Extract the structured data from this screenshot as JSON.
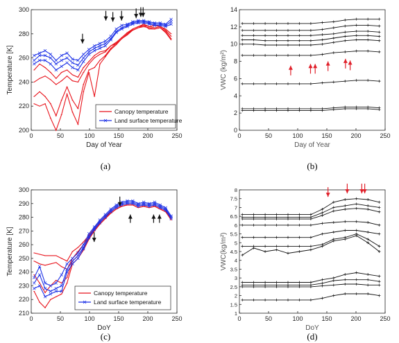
{
  "colors": {
    "red": "#e8121a",
    "blue": "#1a2fe6",
    "black": "#111111",
    "arrow_red": "#e0202a"
  },
  "chart_data": [
    {
      "id": "a",
      "type": "line",
      "caption": "(a)",
      "xlabel": "Day of Year",
      "ylabel": "Temperature [K]",
      "xlim": [
        0,
        250
      ],
      "ylim": [
        200,
        300
      ],
      "xticks": [
        "0",
        "50",
        "100",
        "150",
        "200",
        "250"
      ],
      "yticks": [
        "200",
        "220",
        "240",
        "260",
        "280",
        "300"
      ],
      "legend": {
        "placement": "bottom-right",
        "entries": [
          "Canopy temperature",
          "Land surface temperature"
        ]
      },
      "arrows_color": "black",
      "arrows": [
        {
          "x": 88,
          "y": 272
        },
        {
          "x": 128,
          "y": 291
        },
        {
          "x": 140,
          "y": 290
        },
        {
          "x": 155,
          "y": 291
        },
        {
          "x": 180,
          "y": 293
        },
        {
          "x": 188,
          "y": 294
        },
        {
          "x": 192,
          "y": 294
        }
      ],
      "series": [
        {
          "color": "red",
          "values": [
            250,
            255,
            252,
            248,
            243,
            248,
            250,
            246,
            244,
            252,
            257,
            262,
            265,
            266,
            270,
            272,
            276,
            280,
            284,
            286,
            288,
            286,
            287,
            286,
            284,
            280
          ]
        },
        {
          "color": "red",
          "values": [
            240,
            243,
            245,
            242,
            238,
            241,
            245,
            241,
            240,
            248,
            255,
            260,
            263,
            265,
            270,
            273,
            277,
            281,
            284,
            286,
            287,
            286,
            285,
            286,
            283,
            278
          ]
        },
        {
          "color": "red",
          "values": [
            228,
            232,
            228,
            222,
            212,
            225,
            236,
            225,
            218,
            238,
            250,
            252,
            258,
            262,
            268,
            272,
            276,
            280,
            283,
            285,
            286,
            285,
            284,
            285,
            282,
            276
          ]
        },
        {
          "color": "red",
          "values": [
            222,
            220,
            222,
            210,
            200,
            213,
            230,
            215,
            205,
            232,
            248,
            228,
            255,
            261,
            267,
            271,
            276,
            279,
            283,
            285,
            287,
            284,
            284,
            285,
            281,
            275
          ]
        },
        {
          "color": "blue",
          "values": [
            258,
            262,
            262,
            260,
            255,
            258,
            260,
            256,
            254,
            260,
            265,
            268,
            270,
            272,
            276,
            282,
            285,
            287,
            289,
            290,
            290,
            289,
            288,
            288,
            287,
            290
          ]
        },
        {
          "color": "blue",
          "values": [
            262,
            264,
            266,
            263,
            258,
            262,
            264,
            259,
            258,
            263,
            267,
            270,
            272,
            274,
            278,
            284,
            287,
            288,
            290,
            291,
            291,
            290,
            289,
            289,
            288,
            292
          ]
        },
        {
          "color": "blue",
          "values": [
            255,
            258,
            258,
            255,
            250,
            253,
            256,
            252,
            250,
            257,
            263,
            266,
            268,
            270,
            275,
            281,
            284,
            286,
            288,
            289,
            289,
            288,
            287,
            287,
            286,
            288
          ]
        }
      ]
    },
    {
      "id": "b",
      "type": "line",
      "caption": "(b)",
      "xlabel": "Day of Year",
      "ylabel": "VWC (kg/m²)",
      "xlim": [
        0,
        250
      ],
      "ylim": [
        0,
        14
      ],
      "xticks": [
        "0",
        "50",
        "100",
        "150",
        "200",
        "250"
      ],
      "yticks": [
        "0",
        "2",
        "4",
        "6",
        "8",
        "10",
        "12",
        "14"
      ],
      "arrows_color": "arrow_red",
      "arrows": [
        {
          "x": 88,
          "y": 7.5
        },
        {
          "x": 122,
          "y": 7.7
        },
        {
          "x": 130,
          "y": 7.7
        },
        {
          "x": 152,
          "y": 8.0
        },
        {
          "x": 182,
          "y": 8.3
        },
        {
          "x": 190,
          "y": 8.1
        }
      ],
      "series": [
        {
          "color": "black",
          "values": [
            12.4,
            12.4,
            12.4,
            12.4,
            12.4,
            12.4,
            12.4,
            12.5,
            12.6,
            12.8,
            12.9,
            12.9,
            12.9
          ]
        },
        {
          "color": "black",
          "values": [
            11.6,
            11.6,
            11.6,
            11.6,
            11.6,
            11.6,
            11.6,
            11.7,
            11.9,
            12.1,
            12.2,
            12.2,
            12.1
          ]
        },
        {
          "color": "black",
          "values": [
            11.0,
            11.0,
            11.0,
            11.0,
            11.0,
            11.0,
            11.0,
            11.1,
            11.2,
            11.4,
            11.5,
            11.5,
            11.4
          ]
        },
        {
          "color": "black",
          "values": [
            10.5,
            10.5,
            10.4,
            10.4,
            10.4,
            10.4,
            10.4,
            10.5,
            10.7,
            10.9,
            11.0,
            11.0,
            10.9
          ]
        },
        {
          "color": "black",
          "values": [
            10.0,
            10.0,
            9.9,
            9.9,
            9.9,
            9.9,
            9.9,
            10.0,
            10.2,
            10.4,
            10.5,
            10.5,
            10.4
          ]
        },
        {
          "color": "black",
          "values": [
            8.7,
            8.7,
            8.7,
            8.7,
            8.7,
            8.7,
            8.7,
            8.8,
            9.0,
            9.1,
            9.2,
            9.2,
            9.1
          ]
        },
        {
          "color": "black",
          "values": [
            5.4,
            5.4,
            5.4,
            5.4,
            5.4,
            5.4,
            5.4,
            5.5,
            5.6,
            5.7,
            5.8,
            5.8,
            5.7
          ]
        },
        {
          "color": "black",
          "values": [
            2.5,
            2.5,
            2.5,
            2.5,
            2.5,
            2.5,
            2.5,
            2.5,
            2.6,
            2.7,
            2.7,
            2.7,
            2.6
          ]
        },
        {
          "color": "black",
          "values": [
            2.3,
            2.3,
            2.3,
            2.3,
            2.3,
            2.3,
            2.3,
            2.3,
            2.4,
            2.5,
            2.5,
            2.5,
            2.4
          ]
        }
      ]
    },
    {
      "id": "c",
      "type": "line",
      "caption": "(c)",
      "xlabel": "DoY",
      "ylabel": "Temperature [K]",
      "xlim": [
        0,
        250
      ],
      "ylim": [
        210,
        300
      ],
      "xticks": [
        "0",
        "50",
        "100",
        "150",
        "200",
        "250"
      ],
      "yticks": [
        "210",
        "220",
        "230",
        "240",
        "250",
        "260",
        "270",
        "280",
        "290",
        "300"
      ],
      "legend": {
        "placement": "bottom-right",
        "entries": [
          "Canopy temperature",
          "Land surface temperature"
        ]
      },
      "arrows_color": "black",
      "arrows": [
        {
          "x": 108,
          "y": 262
        },
        {
          "x": 152,
          "y": 288
        },
        {
          "x": 170,
          "y": 282
        },
        {
          "x": 210,
          "y": 282
        },
        {
          "x": 220,
          "y": 282
        }
      ],
      "series": [
        {
          "color": "red",
          "values": [
            254,
            253,
            252,
            252,
            252,
            250,
            248,
            255,
            258,
            262,
            267,
            272,
            277,
            281,
            284,
            287,
            289,
            290,
            290,
            288,
            289,
            288,
            289,
            287,
            285,
            280
          ]
        },
        {
          "color": "red",
          "values": [
            248,
            246,
            245,
            246,
            247,
            244,
            242,
            250,
            255,
            260,
            266,
            271,
            276,
            280,
            283,
            286,
            288,
            289,
            289,
            287,
            288,
            287,
            288,
            286,
            284,
            279
          ]
        },
        {
          "color": "red",
          "values": [
            238,
            232,
            225,
            230,
            234,
            232,
            236,
            248,
            252,
            258,
            265,
            270,
            275,
            279,
            283,
            286,
            288,
            289,
            289,
            287,
            288,
            287,
            288,
            286,
            284,
            279
          ]
        },
        {
          "color": "red",
          "values": [
            226,
            218,
            214,
            220,
            222,
            224,
            232,
            246,
            250,
            256,
            264,
            270,
            275,
            279,
            283,
            286,
            288,
            289,
            289,
            287,
            288,
            287,
            288,
            286,
            284,
            278
          ]
        },
        {
          "color": "blue",
          "values": [
            232,
            238,
            228,
            226,
            228,
            230,
            242,
            248,
            252,
            258,
            266,
            272,
            277,
            281,
            285,
            288,
            290,
            291,
            291,
            289,
            290,
            289,
            290,
            288,
            286,
            280
          ]
        },
        {
          "color": "blue",
          "values": [
            236,
            244,
            232,
            230,
            232,
            238,
            246,
            250,
            254,
            260,
            268,
            273,
            278,
            282,
            286,
            289,
            291,
            292,
            292,
            290,
            291,
            290,
            291,
            289,
            287,
            281
          ]
        },
        {
          "color": "blue",
          "values": [
            228,
            230,
            222,
            224,
            226,
            226,
            240,
            246,
            250,
            257,
            265,
            271,
            276,
            280,
            284,
            287,
            289,
            290,
            290,
            288,
            289,
            288,
            289,
            287,
            285,
            279
          ]
        }
      ]
    },
    {
      "id": "d",
      "type": "line",
      "caption": "(d)",
      "xlabel": "DoY",
      "ylabel": "VWC(kg/m²)",
      "xlim": [
        0,
        250
      ],
      "ylim": [
        1,
        8
      ],
      "xticks": [
        "0",
        "50",
        "100",
        "150",
        "200",
        "250"
      ],
      "yticks": [
        "1",
        "1.5",
        "2",
        "2.5",
        "3",
        "3.5",
        "4",
        "4.5",
        "5",
        "5.5",
        "6",
        "6.5",
        "7",
        "7.5",
        "8"
      ],
      "arrows_color": "arrow_red",
      "arrows": [
        {
          "x": 152,
          "y": 7.6
        },
        {
          "x": 185,
          "y": 7.8
        },
        {
          "x": 210,
          "y": 7.8
        },
        {
          "x": 215,
          "y": 7.8
        }
      ],
      "series": [
        {
          "color": "black",
          "values": [
            6.6,
            6.6,
            6.6,
            6.6,
            6.6,
            6.6,
            6.6,
            6.9,
            7.3,
            7.45,
            7.5,
            7.45,
            7.3
          ]
        },
        {
          "color": "black",
          "values": [
            6.45,
            6.45,
            6.45,
            6.45,
            6.45,
            6.45,
            6.45,
            6.7,
            7.0,
            7.1,
            7.2,
            7.1,
            7.0
          ]
        },
        {
          "color": "black",
          "values": [
            6.35,
            6.35,
            6.35,
            6.35,
            6.35,
            6.35,
            6.35,
            6.55,
            6.8,
            6.9,
            6.95,
            6.9,
            6.75
          ]
        },
        {
          "color": "black",
          "values": [
            6.0,
            6.0,
            6.0,
            6.0,
            6.0,
            6.0,
            6.0,
            6.1,
            6.15,
            6.2,
            6.2,
            6.15,
            6.0
          ]
        },
        {
          "color": "black",
          "values": [
            5.3,
            5.3,
            5.3,
            5.3,
            5.3,
            5.3,
            5.3,
            5.5,
            5.6,
            5.7,
            5.7,
            5.6,
            5.5
          ]
        },
        {
          "color": "black",
          "values": [
            4.8,
            4.8,
            4.8,
            4.8,
            4.8,
            4.8,
            4.8,
            4.9,
            5.2,
            5.3,
            5.5,
            5.2,
            4.8
          ]
        },
        {
          "color": "black",
          "values": [
            4.3,
            4.7,
            4.5,
            4.6,
            4.4,
            4.5,
            4.6,
            4.8,
            5.1,
            5.2,
            5.4,
            5.0,
            4.5
          ]
        },
        {
          "color": "black",
          "values": [
            2.75,
            2.75,
            2.75,
            2.75,
            2.75,
            2.75,
            2.75,
            2.9,
            3.0,
            3.2,
            3.3,
            3.2,
            3.1
          ]
        },
        {
          "color": "black",
          "values": [
            2.6,
            2.6,
            2.6,
            2.6,
            2.6,
            2.6,
            2.6,
            2.7,
            2.85,
            2.9,
            2.9,
            2.9,
            2.8
          ]
        },
        {
          "color": "black",
          "values": [
            2.5,
            2.5,
            2.5,
            2.5,
            2.5,
            2.5,
            2.5,
            2.55,
            2.6,
            2.65,
            2.65,
            2.6,
            2.6
          ]
        },
        {
          "color": "black",
          "values": [
            1.75,
            1.75,
            1.75,
            1.75,
            1.75,
            1.75,
            1.75,
            1.85,
            2.0,
            2.1,
            2.1,
            2.1,
            2.0
          ]
        }
      ]
    }
  ]
}
